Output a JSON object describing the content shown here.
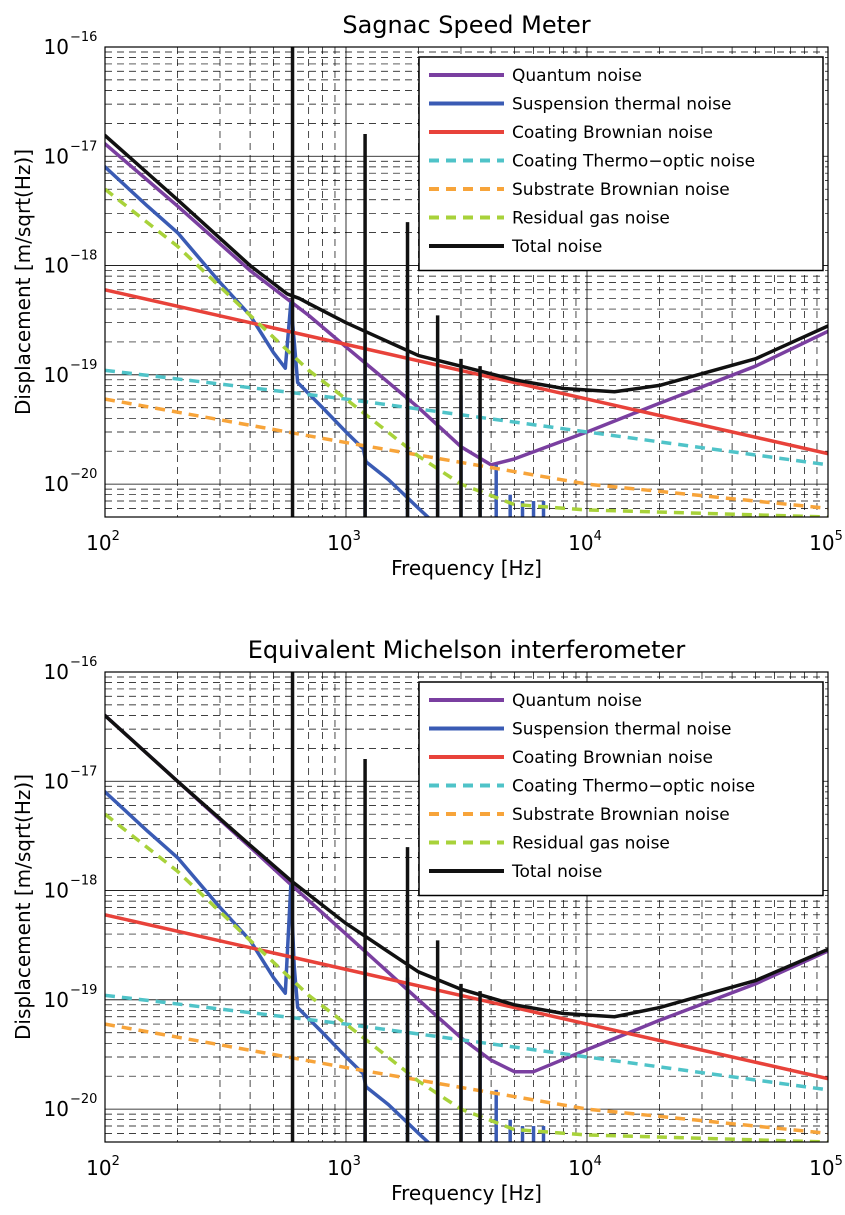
{
  "chart_data": [
    {
      "type": "line",
      "title": "Sagnac Speed Meter",
      "xlabel": "Frequency [Hz]",
      "ylabel": "Displacement [m/sqrt(Hz)]",
      "xscale": "log",
      "yscale": "log",
      "xlim": [
        100,
        100000
      ],
      "ylim": [
        5e-21,
        1e-16
      ],
      "x_ticks": [
        {
          "base": "10",
          "exp": "2"
        },
        {
          "base": "10",
          "exp": "3"
        },
        {
          "base": "10",
          "exp": "4"
        },
        {
          "base": "10",
          "exp": "5"
        }
      ],
      "y_ticks": [
        {
          "base": "10",
          "exp": "−20"
        },
        {
          "base": "10",
          "exp": "−19"
        },
        {
          "base": "10",
          "exp": "−18"
        },
        {
          "base": "10",
          "exp": "−17"
        },
        {
          "base": "10",
          "exp": "−16"
        }
      ],
      "grid": true,
      "legend_position": "top-right",
      "series": [
        {
          "name": "Quantum noise",
          "color": "#7a3fa0",
          "style": "solid",
          "points": [
            [
              100,
              1.3e-17
            ],
            [
              200,
              3.5e-18
            ],
            [
              400,
              9e-19
            ],
            [
              700,
              3.5e-19
            ],
            [
              1000,
              1.8e-19
            ],
            [
              2000,
              5e-20
            ],
            [
              3000,
              2.2e-20
            ],
            [
              4000,
              1.5e-20
            ],
            [
              5000,
              1.7e-20
            ],
            [
              10000,
              3e-20
            ],
            [
              20000,
              5.5e-20
            ],
            [
              50000,
              1.2e-19
            ],
            [
              100000,
              2.5e-19
            ]
          ]
        },
        {
          "name": "Suspension thermal noise",
          "color": "#3a5bb4",
          "style": "solid",
          "points": [
            [
              100,
              8e-18
            ],
            [
              150,
              3.5e-18
            ],
            [
              200,
              2e-18
            ],
            [
              300,
              7e-19
            ],
            [
              400,
              3.5e-19
            ],
            [
              500,
              1.6e-19
            ],
            [
              560,
              1.15e-19
            ],
            [
              590,
              4.5e-19
            ],
            [
              610,
              2e-19
            ],
            [
              630,
              8.5e-20
            ],
            [
              800,
              5e-20
            ],
            [
              1000,
              3e-20
            ],
            [
              1180,
              2.1e-20
            ],
            [
              1210,
              1.6e-20
            ],
            [
              1500,
              1.1e-20
            ],
            [
              1800,
              7.5e-21
            ],
            [
              2000,
              6e-21
            ],
            [
              2300,
              4.5e-21
            ]
          ],
          "spikes": [
            [
              1200,
              2e-19
            ],
            [
              1800,
              1.6e-19
            ],
            [
              2400,
              1.1e-19
            ],
            [
              3000,
              6.5e-20
            ],
            [
              3600,
              5e-20
            ],
            [
              4200,
              1.5e-20
            ],
            [
              4800,
              8e-21
            ],
            [
              5400,
              7e-21
            ],
            [
              6000,
              7e-21
            ],
            [
              6600,
              7e-21
            ]
          ]
        },
        {
          "name": "Coating Brownian noise",
          "color": "#e8423a",
          "style": "solid",
          "points": [
            [
              100,
              6e-19
            ],
            [
              1000,
              1.9e-19
            ],
            [
              10000,
              6e-20
            ],
            [
              100000,
              1.9e-20
            ]
          ]
        },
        {
          "name": "Coating Thermo−optic noise",
          "color": "#4fc3c8",
          "style": "dashed",
          "points": [
            [
              100,
              1.1e-19
            ],
            [
              1000,
              6e-20
            ],
            [
              10000,
              3e-20
            ],
            [
              100000,
              1.5e-20
            ]
          ]
        },
        {
          "name": "Substrate Brownian noise",
          "color": "#f7a43a",
          "style": "dashed",
          "points": [
            [
              100,
              6e-20
            ],
            [
              1000,
              2.4e-20
            ],
            [
              10000,
              1e-20
            ],
            [
              100000,
              6e-21
            ]
          ]
        },
        {
          "name": "Residual gas noise",
          "color": "#a8d23a",
          "style": "dashed",
          "points": [
            [
              100,
              5e-18
            ],
            [
              200,
              1.5e-18
            ],
            [
              400,
              3.5e-19
            ],
            [
              700,
              1.1e-19
            ],
            [
              1000,
              6e-20
            ],
            [
              2000,
              1.8e-20
            ],
            [
              3000,
              1e-20
            ],
            [
              5000,
              6.5e-21
            ],
            [
              10000,
              5.8e-21
            ],
            [
              100000,
              5e-21
            ]
          ]
        },
        {
          "name": "Total noise",
          "color": "#111111",
          "style": "solid",
          "points": [
            [
              100,
              1.55e-17
            ],
            [
              200,
              4e-18
            ],
            [
              400,
              1e-18
            ],
            [
              570,
              5.5e-19
            ],
            [
              640,
              5e-19
            ],
            [
              700,
              4.5e-19
            ],
            [
              1000,
              3e-19
            ],
            [
              2000,
              1.5e-19
            ],
            [
              3000,
              1.2e-19
            ],
            [
              5000,
              9e-20
            ],
            [
              8000,
              7.5e-20
            ],
            [
              13000,
              7e-20
            ],
            [
              20000,
              8e-20
            ],
            [
              50000,
              1.4e-19
            ],
            [
              100000,
              2.8e-19
            ]
          ],
          "spikes": [
            [
              600,
              1e-16
            ],
            [
              1200,
              1.6e-17
            ],
            [
              1800,
              2.5e-18
            ],
            [
              2400,
              3.5e-19
            ],
            [
              3000,
              1.4e-19
            ],
            [
              3600,
              1.2e-19
            ]
          ]
        }
      ]
    },
    {
      "type": "line",
      "title": "Equivalent Michelson interferometer",
      "xlabel": "Frequency [Hz]",
      "ylabel": "Displacement [m/sqrt(Hz)]",
      "xscale": "log",
      "yscale": "log",
      "xlim": [
        100,
        100000
      ],
      "ylim": [
        5e-21,
        1e-16
      ],
      "x_ticks": [
        {
          "base": "10",
          "exp": "2"
        },
        {
          "base": "10",
          "exp": "3"
        },
        {
          "base": "10",
          "exp": "4"
        },
        {
          "base": "10",
          "exp": "5"
        }
      ],
      "y_ticks": [
        {
          "base": "10",
          "exp": "−20"
        },
        {
          "base": "10",
          "exp": "−19"
        },
        {
          "base": "10",
          "exp": "−18"
        },
        {
          "base": "10",
          "exp": "−17"
        },
        {
          "base": "10",
          "exp": "−16"
        }
      ],
      "grid": true,
      "legend_position": "top-right",
      "series": [
        {
          "name": "Quantum noise",
          "color": "#7a3fa0",
          "style": "solid",
          "points": [
            [
              100,
              4e-17
            ],
            [
              200,
              1e-17
            ],
            [
              400,
              2.5e-18
            ],
            [
              600,
              1.1e-18
            ],
            [
              1000,
              4e-19
            ],
            [
              2000,
              1e-19
            ],
            [
              3000,
              4.5e-20
            ],
            [
              4000,
              2.8e-20
            ],
            [
              5000,
              2.2e-20
            ],
            [
              6000,
              2.2e-20
            ],
            [
              10000,
              3.5e-20
            ],
            [
              20000,
              6.5e-20
            ],
            [
              50000,
              1.4e-19
            ],
            [
              100000,
              2.8e-19
            ]
          ]
        },
        {
          "name": "Suspension thermal noise",
          "color": "#3a5bb4",
          "style": "solid",
          "points": [
            [
              100,
              8e-18
            ],
            [
              150,
              3.5e-18
            ],
            [
              200,
              2e-18
            ],
            [
              300,
              7e-19
            ],
            [
              400,
              3.5e-19
            ],
            [
              500,
              1.6e-19
            ],
            [
              560,
              1.15e-19
            ],
            [
              590,
              1.1e-18
            ],
            [
              610,
              2e-19
            ],
            [
              630,
              8.5e-20
            ],
            [
              800,
              5e-20
            ],
            [
              1000,
              3e-20
            ],
            [
              1180,
              2.1e-20
            ],
            [
              1210,
              1.6e-20
            ],
            [
              1500,
              1.1e-20
            ],
            [
              1800,
              7.5e-21
            ],
            [
              2000,
              6e-21
            ],
            [
              2300,
              4.5e-21
            ]
          ],
          "spikes": [
            [
              1200,
              2e-19
            ],
            [
              1800,
              1.6e-19
            ],
            [
              2400,
              1.1e-19
            ],
            [
              3000,
              6.5e-20
            ],
            [
              3600,
              5e-20
            ],
            [
              4200,
              1.5e-20
            ],
            [
              4800,
              8e-21
            ],
            [
              5400,
              7e-21
            ],
            [
              6000,
              7e-21
            ],
            [
              6600,
              7e-21
            ]
          ]
        },
        {
          "name": "Coating Brownian noise",
          "color": "#e8423a",
          "style": "solid",
          "points": [
            [
              100,
              6e-19
            ],
            [
              1000,
              1.9e-19
            ],
            [
              10000,
              6e-20
            ],
            [
              100000,
              1.9e-20
            ]
          ]
        },
        {
          "name": "Coating Thermo−optic noise",
          "color": "#4fc3c8",
          "style": "dashed",
          "points": [
            [
              100,
              1.1e-19
            ],
            [
              1000,
              6e-20
            ],
            [
              10000,
              3e-20
            ],
            [
              100000,
              1.5e-20
            ]
          ]
        },
        {
          "name": "Substrate Brownian noise",
          "color": "#f7a43a",
          "style": "dashed",
          "points": [
            [
              100,
              6e-20
            ],
            [
              1000,
              2.4e-20
            ],
            [
              10000,
              1e-20
            ],
            [
              100000,
              6e-21
            ]
          ]
        },
        {
          "name": "Residual gas noise",
          "color": "#a8d23a",
          "style": "dashed",
          "points": [
            [
              100,
              5e-18
            ],
            [
              200,
              1.5e-18
            ],
            [
              400,
              3.5e-19
            ],
            [
              700,
              1.1e-19
            ],
            [
              1000,
              6e-20
            ],
            [
              2000,
              1.8e-20
            ],
            [
              3000,
              1e-20
            ],
            [
              5000,
              6.5e-21
            ],
            [
              10000,
              5.8e-21
            ],
            [
              100000,
              5e-21
            ]
          ]
        },
        {
          "name": "Total noise",
          "color": "#111111",
          "style": "solid",
          "points": [
            [
              100,
              4e-17
            ],
            [
              200,
              1e-17
            ],
            [
              400,
              2.6e-18
            ],
            [
              600,
              1.2e-18
            ],
            [
              1000,
              5e-19
            ],
            [
              2000,
              1.8e-19
            ],
            [
              3000,
              1.25e-19
            ],
            [
              5000,
              9e-20
            ],
            [
              8000,
              7.5e-20
            ],
            [
              13000,
              7e-20
            ],
            [
              20000,
              8.5e-20
            ],
            [
              50000,
              1.5e-19
            ],
            [
              100000,
              2.9e-19
            ]
          ],
          "spikes": [
            [
              600,
              1e-16
            ],
            [
              1200,
              1.6e-17
            ],
            [
              1800,
              2.5e-18
            ],
            [
              2400,
              3.5e-19
            ],
            [
              3000,
              1.4e-19
            ],
            [
              3600,
              1.2e-19
            ]
          ]
        }
      ]
    }
  ]
}
